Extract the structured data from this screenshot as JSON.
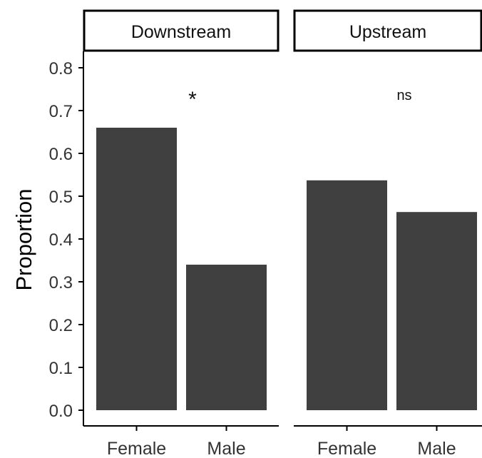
{
  "chart_data": {
    "type": "bar",
    "ylabel": "Proportion",
    "xlabel": "",
    "ylim": [
      0.0,
      0.8
    ],
    "yticks": [
      "0.0",
      "0.1",
      "0.2",
      "0.3",
      "0.4",
      "0.5",
      "0.6",
      "0.7",
      "0.8"
    ],
    "grid": false,
    "bar_color": "#404040",
    "panels": [
      {
        "facet": "Downstream",
        "categories": [
          "Female",
          "Male"
        ],
        "values": [
          0.66,
          0.34
        ],
        "annotation": "*"
      },
      {
        "facet": "Upstream",
        "categories": [
          "Female",
          "Male"
        ],
        "values": [
          0.537,
          0.463
        ],
        "annotation": "ns"
      }
    ]
  }
}
